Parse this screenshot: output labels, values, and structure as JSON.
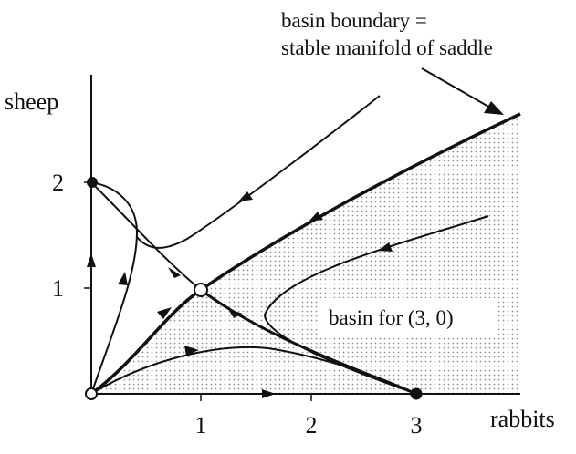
{
  "diagram": {
    "annotation_line1": "basin boundary =",
    "annotation_line2": "stable manifold of saddle",
    "basin_label": "basin for (3, 0)",
    "x_axis_label": "rabbits",
    "y_axis_label": "sheep",
    "x_ticks": [
      "1",
      "2",
      "3"
    ],
    "y_ticks": [
      "1",
      "2"
    ],
    "fixed_points": [
      {
        "name": "origin",
        "coords": [
          0,
          0
        ],
        "type": "unstable node"
      },
      {
        "name": "sheep-only",
        "coords": [
          0,
          2
        ],
        "type": "stable node"
      },
      {
        "name": "saddle",
        "coords": [
          1,
          1
        ],
        "type": "saddle"
      },
      {
        "name": "rabbits-only",
        "coords": [
          3,
          0
        ],
        "type": "stable node"
      }
    ],
    "colors": {
      "ink": "#111111",
      "basin_dots": "#9a9a9a",
      "background": "#ffffff"
    }
  }
}
